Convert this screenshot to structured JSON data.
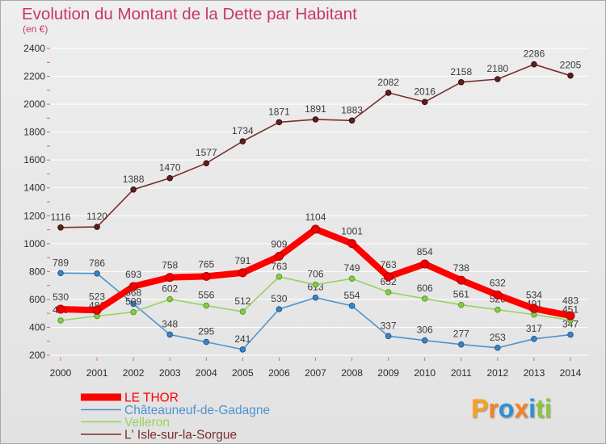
{
  "chart_data": {
    "type": "line",
    "title": "Evolution du Montant de la Dette par Habitant",
    "subtitle": "(en €)",
    "x": [
      2000,
      2001,
      2002,
      2003,
      2004,
      2005,
      2006,
      2007,
      2008,
      2009,
      2010,
      2011,
      2012,
      2013,
      2014
    ],
    "ylim": [
      200,
      2400
    ],
    "yticks": [
      200,
      400,
      600,
      800,
      1000,
      1200,
      1400,
      1600,
      1800,
      2000,
      2200,
      2400
    ],
    "grid": true,
    "legend_position": "bottom-left",
    "series": [
      {
        "name": "LE THOR",
        "color": "#ff0000",
        "values": [
          530,
          523,
          693,
          758,
          765,
          791,
          909,
          1104,
          1001,
          763,
          854,
          738,
          632,
          534,
          483
        ]
      },
      {
        "name": "Châteauneuf-de-Gadagne",
        "color": "#4f93cf",
        "values": [
          789,
          786,
          568,
          348,
          295,
          241,
          530,
          613,
          554,
          337,
          306,
          277,
          253,
          317,
          347
        ]
      },
      {
        "name": "Velleron",
        "color": "#96d35f",
        "values": [
          449,
          481,
          509,
          602,
          556,
          512,
          763,
          706,
          749,
          652,
          606,
          561,
          526,
          491,
          451
        ]
      },
      {
        "name": "L' Isle-sur-la-Sorgue",
        "color": "#7a2e2e",
        "values": [
          1116,
          1120,
          1388,
          1470,
          1577,
          1734,
          1871,
          1891,
          1883,
          2082,
          2016,
          2158,
          2180,
          2286,
          2205
        ]
      }
    ]
  },
  "logo": "Proxiti"
}
